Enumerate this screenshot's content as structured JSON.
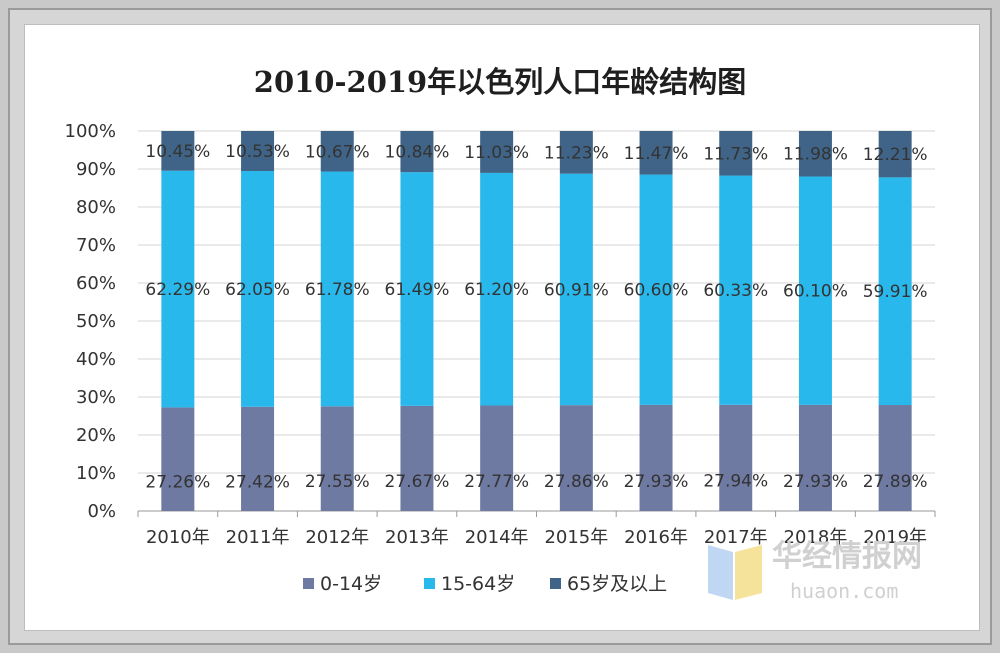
{
  "chart_data": {
    "type": "bar",
    "stacked": true,
    "title": "2010-2019年以色列人口年龄结构图",
    "categories": [
      "2010年",
      "2011年",
      "2012年",
      "2013年",
      "2014年",
      "2015年",
      "2016年",
      "2017年",
      "2018年",
      "2019年"
    ],
    "y_ticks": [
      "0%",
      "10%",
      "20%",
      "30%",
      "40%",
      "50%",
      "60%",
      "70%",
      "80%",
      "90%",
      "100%"
    ],
    "ylim": [
      0,
      100
    ],
    "grid": true,
    "legend_position": "bottom",
    "series": [
      {
        "name": "0-14岁",
        "color": "#6f7aa2",
        "values": [
          27.26,
          27.42,
          27.55,
          27.67,
          27.77,
          27.86,
          27.93,
          27.94,
          27.93,
          27.89
        ],
        "labels": [
          "27.26%",
          "27.42%",
          "27.55%",
          "27.67%",
          "27.77%",
          "27.86%",
          "27.93%",
          "27.94%",
          "27.93%",
          "27.89%"
        ]
      },
      {
        "name": "15-64岁",
        "color": "#29b8ec",
        "values": [
          62.29,
          62.05,
          61.78,
          61.49,
          61.2,
          60.91,
          60.6,
          60.33,
          60.1,
          59.91
        ],
        "labels": [
          "62.29%",
          "62.05%",
          "61.78%",
          "61.49%",
          "61.20%",
          "60.91%",
          "60.60%",
          "60.33%",
          "60.10%",
          "59.91%"
        ]
      },
      {
        "name": "65岁及以上",
        "color": "#3f6488",
        "values": [
          10.45,
          10.53,
          10.67,
          10.84,
          11.03,
          11.23,
          11.47,
          11.73,
          11.98,
          12.21
        ],
        "labels": [
          "10.45%",
          "10.53%",
          "10.67%",
          "10.84%",
          "11.03%",
          "11.23%",
          "11.47%",
          "11.73%",
          "11.98%",
          "12.21%"
        ]
      }
    ]
  },
  "watermark": {
    "cn": "华经情报网",
    "en": "huaon.com"
  }
}
